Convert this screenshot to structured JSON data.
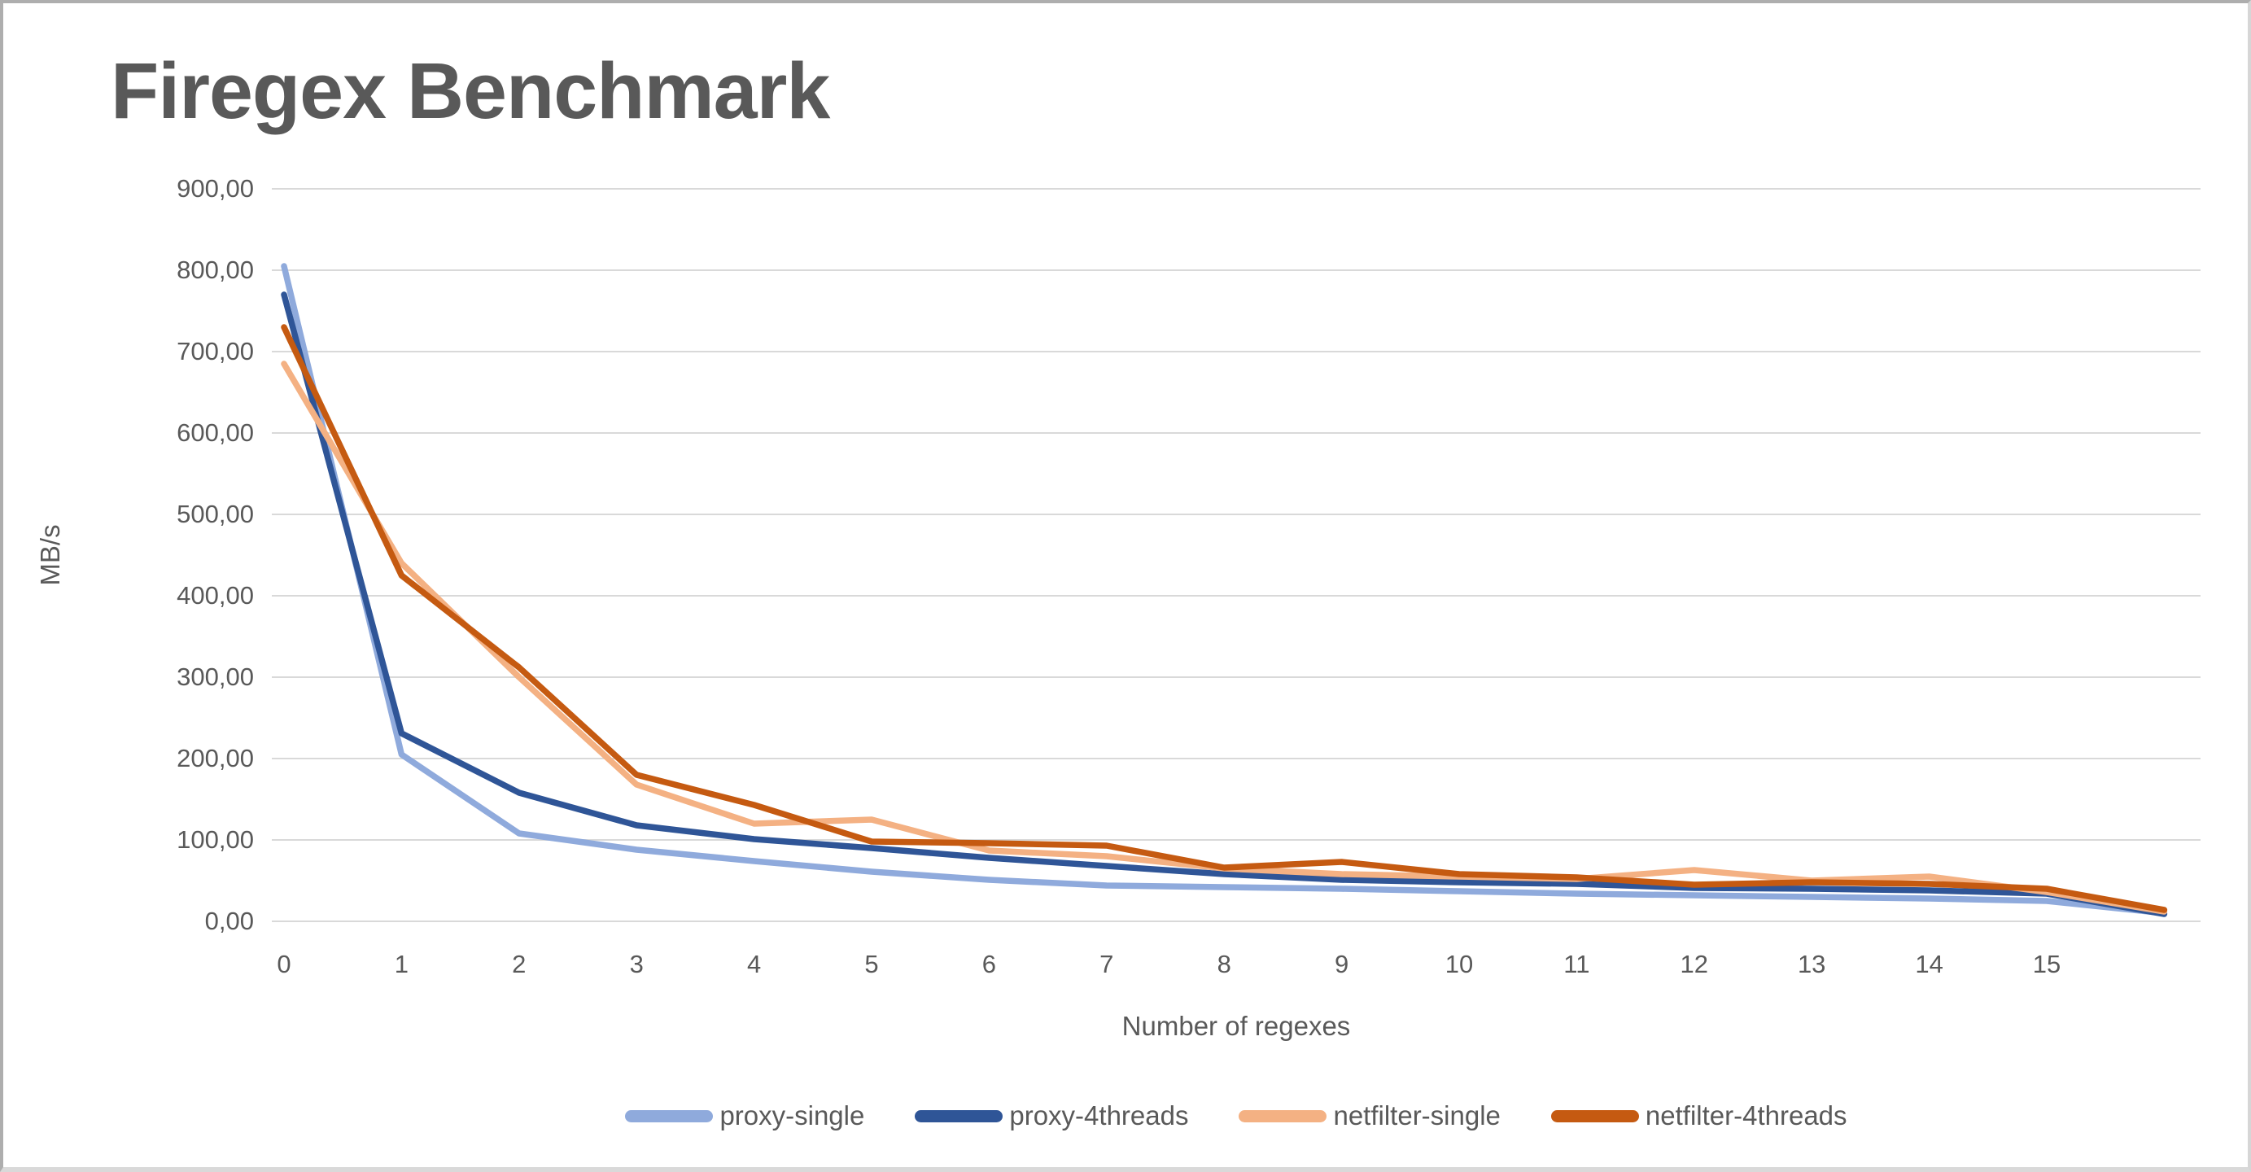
{
  "title": "Firegex Benchmark",
  "chart_data": {
    "type": "line",
    "title": "Firegex Benchmark",
    "xlabel": "Number of regexes",
    "ylabel": "MB/s",
    "ylim": [
      0,
      900
    ],
    "y_tick_step": 100,
    "y_tick_labels": [
      "900,00",
      "800,00",
      "700,00",
      "600,00",
      "500,00",
      "400,00",
      "300,00",
      "200,00",
      "100,00",
      "0,00"
    ],
    "x": [
      0,
      1,
      2,
      3,
      4,
      5,
      6,
      7,
      8,
      9,
      10,
      11,
      12,
      13,
      14,
      15,
      16
    ],
    "x_tick_labels": [
      "0",
      "1",
      "2",
      "3",
      "4",
      "5",
      "6",
      "7",
      "8",
      "9",
      "10",
      "11",
      "12",
      "13",
      "14",
      "15"
    ],
    "grid": "horizontal",
    "gridline_color": "#D9D9D9",
    "legend_position": "bottom",
    "series": [
      {
        "name": "proxy-single",
        "color": "#8FAADC",
        "values": [
          805,
          205,
          108,
          88,
          74,
          61,
          51,
          44,
          42,
          40,
          37,
          34,
          32,
          30,
          28,
          25,
          10
        ]
      },
      {
        "name": "proxy-4threads",
        "color": "#2F5597",
        "values": [
          770,
          231,
          158,
          118,
          101,
          90,
          78,
          68,
          58,
          51,
          48,
          46,
          41,
          40,
          38,
          34,
          9
        ]
      },
      {
        "name": "netfilter-single",
        "color": "#F4B183",
        "values": [
          685,
          440,
          300,
          168,
          120,
          125,
          87,
          80,
          65,
          58,
          55,
          52,
          63,
          50,
          55,
          36,
          12
        ]
      },
      {
        "name": "netfilter-4threads",
        "color": "#C55A11",
        "values": [
          730,
          425,
          312,
          180,
          143,
          98,
          96,
          93,
          66,
          73,
          58,
          54,
          45,
          48,
          46,
          40,
          14
        ]
      }
    ]
  },
  "text_color": "#595959"
}
